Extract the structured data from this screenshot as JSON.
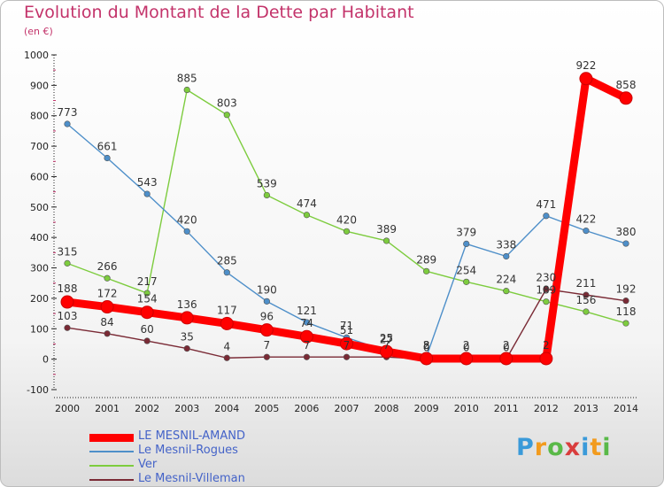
{
  "chart_data": {
    "type": "line",
    "title": "Evolution du Montant de la Dette par Habitant",
    "subtitle": "(en €)",
    "x": [
      "2000",
      "2001",
      "2002",
      "2003",
      "2004",
      "2005",
      "2006",
      "2007",
      "2008",
      "2009",
      "2010",
      "2011",
      "2012",
      "2013",
      "2014"
    ],
    "ylim": [
      -100,
      1000
    ],
    "yticks": [
      "-100",
      "0",
      "100",
      "200",
      "300",
      "400",
      "500",
      "600",
      "700",
      "800",
      "900",
      "1000"
    ],
    "grid": false,
    "legend_position": "bottom-left",
    "series": [
      {
        "name": "LE MESNIL-AMAND",
        "color": "#ff0000",
        "values": [
          188,
          172,
          154,
          136,
          117,
          96,
          74,
          51,
          25,
          2,
          2,
          2,
          2,
          922,
          858
        ],
        "labels": [
          "188",
          "172",
          "154",
          "136",
          "117",
          "96",
          "74",
          "51",
          "25",
          "2",
          "2",
          "2",
          "2",
          "922",
          "858"
        ]
      },
      {
        "name": "Le Mesnil-Rogues",
        "color": "#4e8fc9",
        "values": [
          773,
          661,
          543,
          420,
          285,
          190,
          121,
          71,
          27,
          8,
          379,
          338,
          471,
          422,
          380
        ],
        "labels": [
          "773",
          "661",
          "543",
          "420",
          "285",
          "190",
          "121",
          "71",
          "27",
          "8",
          "379",
          "338",
          "471",
          "422",
          "380"
        ]
      },
      {
        "name": "Ver",
        "color": "#7dcc3e",
        "values": [
          315,
          266,
          217,
          885,
          803,
          539,
          474,
          420,
          389,
          289,
          254,
          224,
          189,
          156,
          118
        ],
        "labels": [
          "315",
          "266",
          "217",
          "885",
          "803",
          "539",
          "474",
          "420",
          "389",
          "289",
          "254",
          "224",
          "189",
          "156",
          "118"
        ]
      },
      {
        "name": "Le Mesnil-Villeman",
        "color": "#7a2a35",
        "values": [
          103,
          84,
          60,
          35,
          4,
          7,
          7,
          7,
          7,
          0,
          0,
          0,
          230,
          211,
          192
        ],
        "labels": [
          "103",
          "84",
          "60",
          "35",
          "4",
          "7",
          "7",
          "7",
          "7",
          "0",
          "0",
          "0",
          "230",
          "211",
          "192"
        ]
      }
    ]
  },
  "legend": {
    "items": [
      {
        "label": "LE MESNIL-AMAND",
        "color": "#ff0000"
      },
      {
        "label": "Le Mesnil-Rogues",
        "color": "#4e8fc9"
      },
      {
        "label": "Ver",
        "color": "#7dcc3e"
      },
      {
        "label": "Le Mesnil-Villeman",
        "color": "#7a2a35"
      }
    ]
  },
  "logo": {
    "p": "P",
    "r": "r",
    "o": "o",
    "x": "x",
    "i1": "i",
    "t": "t",
    "i2": "i"
  }
}
